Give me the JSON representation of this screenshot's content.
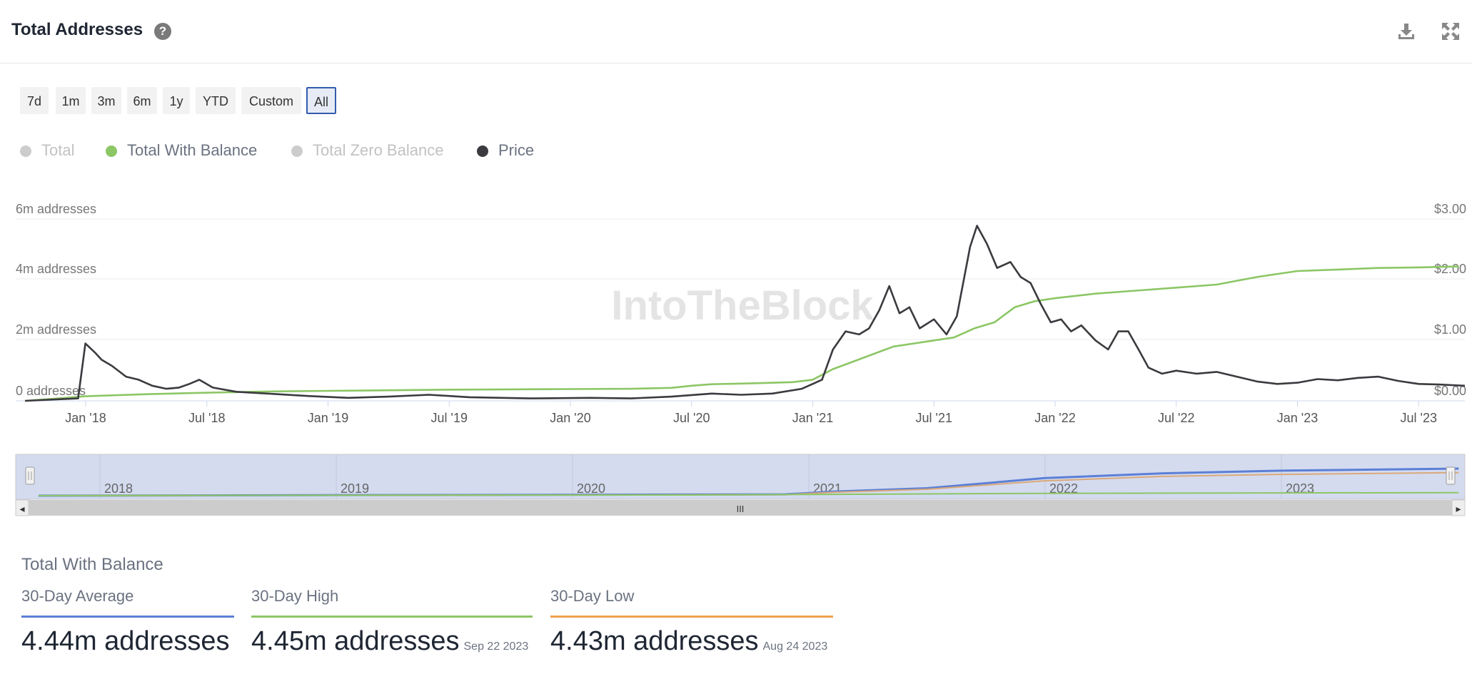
{
  "header": {
    "title": "Total Addresses",
    "help_glyph": "?",
    "icons": [
      "download-icon",
      "fullscreen-icon"
    ]
  },
  "ranges": [
    {
      "label": "7d",
      "selected": false
    },
    {
      "label": "1m",
      "selected": false
    },
    {
      "label": "3m",
      "selected": false
    },
    {
      "label": "6m",
      "selected": false
    },
    {
      "label": "1y",
      "selected": false
    },
    {
      "label": "YTD",
      "selected": false
    },
    {
      "label": "Custom",
      "selected": false
    },
    {
      "label": "All",
      "selected": true
    }
  ],
  "legend": [
    {
      "label": "Total",
      "color": "#cccccc",
      "active": false
    },
    {
      "label": "Total With Balance",
      "color": "#8cc665",
      "active": true
    },
    {
      "label": "Total Zero Balance",
      "color": "#cccccc",
      "active": false
    },
    {
      "label": "Price",
      "color": "#3a3a3f",
      "active": true
    }
  ],
  "chart_data": {
    "type": "line",
    "watermark": "IntoTheBlock",
    "x_ticks": [
      "Jan '18",
      "Jul '18",
      "Jan '19",
      "Jul '19",
      "Jan '20",
      "Jul '20",
      "Jan '21",
      "Jul '21",
      "Jan '22",
      "Jul '22",
      "Jan '23",
      "Jul '23"
    ],
    "y_left": {
      "ticks": [
        "0 addresses",
        "2m addresses",
        "4m addresses",
        "6m addresses"
      ],
      "range": [
        0,
        6
      ]
    },
    "y_right": {
      "ticks": [
        "$0.00",
        "$1.00",
        "$2.00",
        "$3.00"
      ],
      "range": [
        0,
        3
      ]
    },
    "series": [
      {
        "name": "Total With Balance",
        "unit": "m addresses",
        "color": "#8cc665",
        "points": [
          [
            "2017-10",
            0.0
          ],
          [
            "2017-11",
            0.05
          ],
          [
            "2017-12",
            0.1
          ],
          [
            "2018-01",
            0.15
          ],
          [
            "2018-04",
            0.22
          ],
          [
            "2018-07",
            0.27
          ],
          [
            "2018-10",
            0.31
          ],
          [
            "2019-01",
            0.33
          ],
          [
            "2019-04",
            0.35
          ],
          [
            "2019-07",
            0.37
          ],
          [
            "2019-10",
            0.38
          ],
          [
            "2020-01",
            0.39
          ],
          [
            "2020-04",
            0.4
          ],
          [
            "2020-06",
            0.43
          ],
          [
            "2020-07",
            0.5
          ],
          [
            "2020-08",
            0.55
          ],
          [
            "2020-10",
            0.58
          ],
          [
            "2020-12",
            0.62
          ],
          [
            "2021-01",
            0.7
          ],
          [
            "2021-02",
            1.05
          ],
          [
            "2021-03",
            1.3
          ],
          [
            "2021-04",
            1.55
          ],
          [
            "2021-05",
            1.8
          ],
          [
            "2021-06",
            1.9
          ],
          [
            "2021-07",
            2.0
          ],
          [
            "2021-08",
            2.1
          ],
          [
            "2021-09",
            2.4
          ],
          [
            "2021-10",
            2.6
          ],
          [
            "2021-11",
            3.1
          ],
          [
            "2021-12",
            3.3
          ],
          [
            "2022-01",
            3.4
          ],
          [
            "2022-03",
            3.55
          ],
          [
            "2022-05",
            3.65
          ],
          [
            "2022-07",
            3.75
          ],
          [
            "2022-09",
            3.85
          ],
          [
            "2022-11",
            4.1
          ],
          [
            "2023-01",
            4.3
          ],
          [
            "2023-03",
            4.35
          ],
          [
            "2023-05",
            4.4
          ],
          [
            "2023-07",
            4.42
          ],
          [
            "2023-09",
            4.45
          ]
        ]
      },
      {
        "name": "Price",
        "unit": "$",
        "color": "#3a3a3f",
        "axis": "right",
        "points": [
          [
            "2017-10",
            0.0
          ],
          [
            "2017-12-20",
            0.04
          ],
          [
            "2017-12-31",
            0.95
          ],
          [
            "2018-01-15",
            0.8
          ],
          [
            "2018-01-25",
            0.68
          ],
          [
            "2018-02-10",
            0.58
          ],
          [
            "2018-03-01",
            0.4
          ],
          [
            "2018-03-20",
            0.35
          ],
          [
            "2018-04-10",
            0.25
          ],
          [
            "2018-05-01",
            0.2
          ],
          [
            "2018-05-20",
            0.22
          ],
          [
            "2018-06-05",
            0.28
          ],
          [
            "2018-06-20",
            0.35
          ],
          [
            "2018-07-10",
            0.22
          ],
          [
            "2018-08-15",
            0.15
          ],
          [
            "2018-10-01",
            0.12
          ],
          [
            "2018-12-01",
            0.08
          ],
          [
            "2019-02-01",
            0.05
          ],
          [
            "2019-04-01",
            0.07
          ],
          [
            "2019-06-01",
            0.1
          ],
          [
            "2019-08-01",
            0.06
          ],
          [
            "2019-11-01",
            0.04
          ],
          [
            "2020-02-01",
            0.05
          ],
          [
            "2020-04-01",
            0.04
          ],
          [
            "2020-06-01",
            0.07
          ],
          [
            "2020-08-01",
            0.12
          ],
          [
            "2020-09-15",
            0.1
          ],
          [
            "2020-11-01",
            0.12
          ],
          [
            "2020-12-15",
            0.2
          ],
          [
            "2021-01-15",
            0.35
          ],
          [
            "2021-02-01",
            0.85
          ],
          [
            "2021-02-20",
            1.15
          ],
          [
            "2021-03-10",
            1.1
          ],
          [
            "2021-03-25",
            1.2
          ],
          [
            "2021-04-10",
            1.5
          ],
          [
            "2021-04-25",
            1.9
          ],
          [
            "2021-05-10",
            1.45
          ],
          [
            "2021-05-25",
            1.55
          ],
          [
            "2021-06-10",
            1.2
          ],
          [
            "2021-07-01",
            1.35
          ],
          [
            "2021-07-20",
            1.1
          ],
          [
            "2021-08-05",
            1.4
          ],
          [
            "2021-08-25",
            2.55
          ],
          [
            "2021-09-05",
            2.9
          ],
          [
            "2021-09-20",
            2.6
          ],
          [
            "2021-10-05",
            2.2
          ],
          [
            "2021-10-25",
            2.3
          ],
          [
            "2021-11-10",
            2.05
          ],
          [
            "2021-11-25",
            1.95
          ],
          [
            "2021-12-10",
            1.6
          ],
          [
            "2021-12-25",
            1.3
          ],
          [
            "2022-01-10",
            1.35
          ],
          [
            "2022-01-25",
            1.15
          ],
          [
            "2022-02-10",
            1.25
          ],
          [
            "2022-03-01",
            1.0
          ],
          [
            "2022-03-20",
            0.85
          ],
          [
            "2022-04-05",
            1.15
          ],
          [
            "2022-04-20",
            1.15
          ],
          [
            "2022-05-05",
            0.85
          ],
          [
            "2022-05-20",
            0.55
          ],
          [
            "2022-06-10",
            0.45
          ],
          [
            "2022-07-01",
            0.5
          ],
          [
            "2022-08-01",
            0.45
          ],
          [
            "2022-09-01",
            0.48
          ],
          [
            "2022-10-01",
            0.4
          ],
          [
            "2022-11-01",
            0.32
          ],
          [
            "2022-12-01",
            0.28
          ],
          [
            "2023-01-01",
            0.3
          ],
          [
            "2023-02-01",
            0.36
          ],
          [
            "2023-03-01",
            0.34
          ],
          [
            "2023-04-01",
            0.38
          ],
          [
            "2023-05-01",
            0.4
          ],
          [
            "2023-06-01",
            0.33
          ],
          [
            "2023-07-01",
            0.28
          ],
          [
            "2023-08-01",
            0.27
          ],
          [
            "2023-09-22",
            0.25
          ]
        ]
      }
    ],
    "navigator": {
      "year_labels": [
        "2018",
        "2019",
        "2020",
        "2021",
        "2022",
        "2023"
      ],
      "handle_glyph": "III",
      "scroll_left_glyph": "◂",
      "scroll_right_glyph": "▸",
      "colors": [
        "#5b7fd6",
        "#d9a97a",
        "#8cc665"
      ]
    }
  },
  "summary": {
    "title": "Total With Balance",
    "stats": [
      {
        "label": "30-Day Average",
        "value": "4.44m addresses",
        "date": "",
        "color": "#5b7fd6"
      },
      {
        "label": "30-Day High",
        "value": "4.45m addresses",
        "date": "Sep 22 2023",
        "color": "#8cc665"
      },
      {
        "label": "30-Day Low",
        "value": "4.43m addresses",
        "date": "Aug 24 2023",
        "color": "#f0a050"
      }
    ]
  }
}
